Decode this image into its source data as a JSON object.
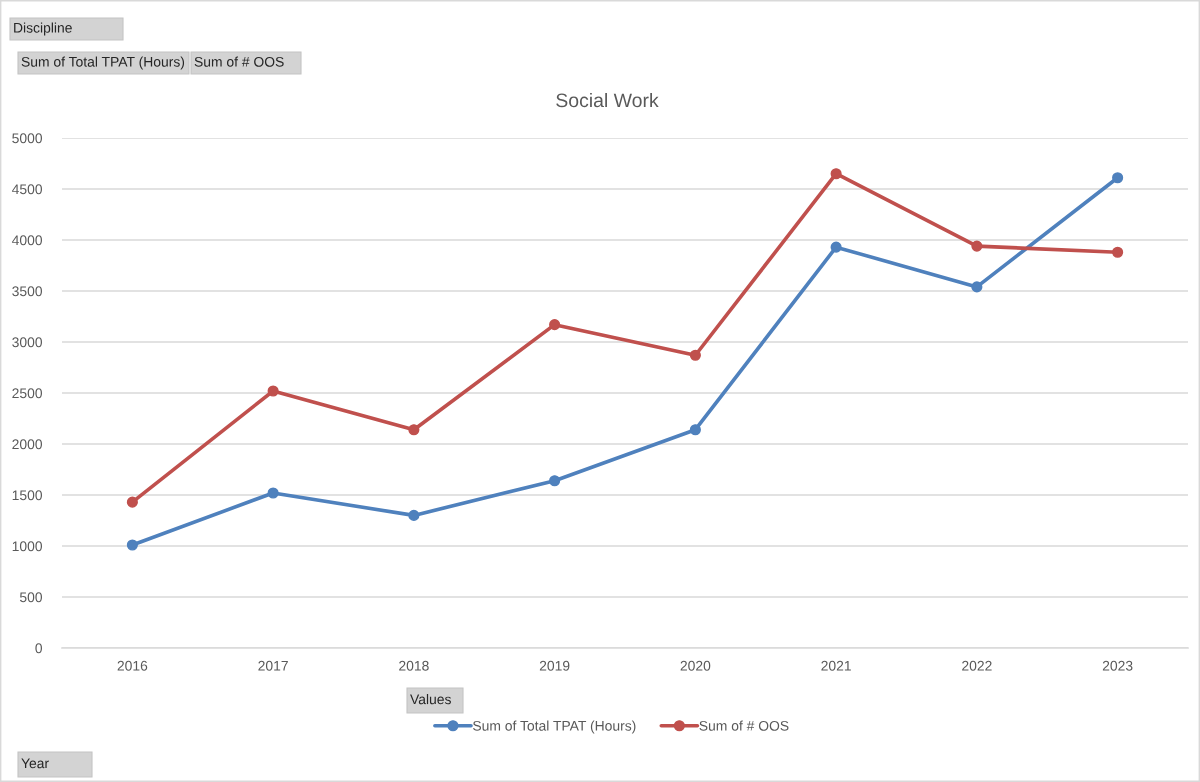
{
  "chart_data": {
    "type": "line",
    "title": "Social Work",
    "categories": [
      "2016",
      "2017",
      "2018",
      "2019",
      "2020",
      "2021",
      "2022",
      "2023"
    ],
    "series": [
      {
        "name": "Sum of Total TPAT (Hours)",
        "color": "#4f81bd",
        "values": [
          1010,
          1520,
          1300,
          1640,
          2140,
          3930,
          3540,
          4610
        ]
      },
      {
        "name": "Sum of # OOS",
        "color": "#c0504d",
        "values": [
          1430,
          2520,
          2140,
          3170,
          2870,
          4650,
          3940,
          3880
        ]
      }
    ],
    "ylim": [
      0,
      5000
    ],
    "yticks": [
      0,
      500,
      1000,
      1500,
      2000,
      2500,
      3000,
      3500,
      4000,
      4500,
      5000
    ],
    "grid": "y",
    "legend": "bottom",
    "marker": "circle",
    "line_style": "solid",
    "annotations": [
      "Discipline",
      "Sum of Total TPAT (Hours)",
      "Sum of # OOS",
      "Values",
      "Year"
    ]
  }
}
